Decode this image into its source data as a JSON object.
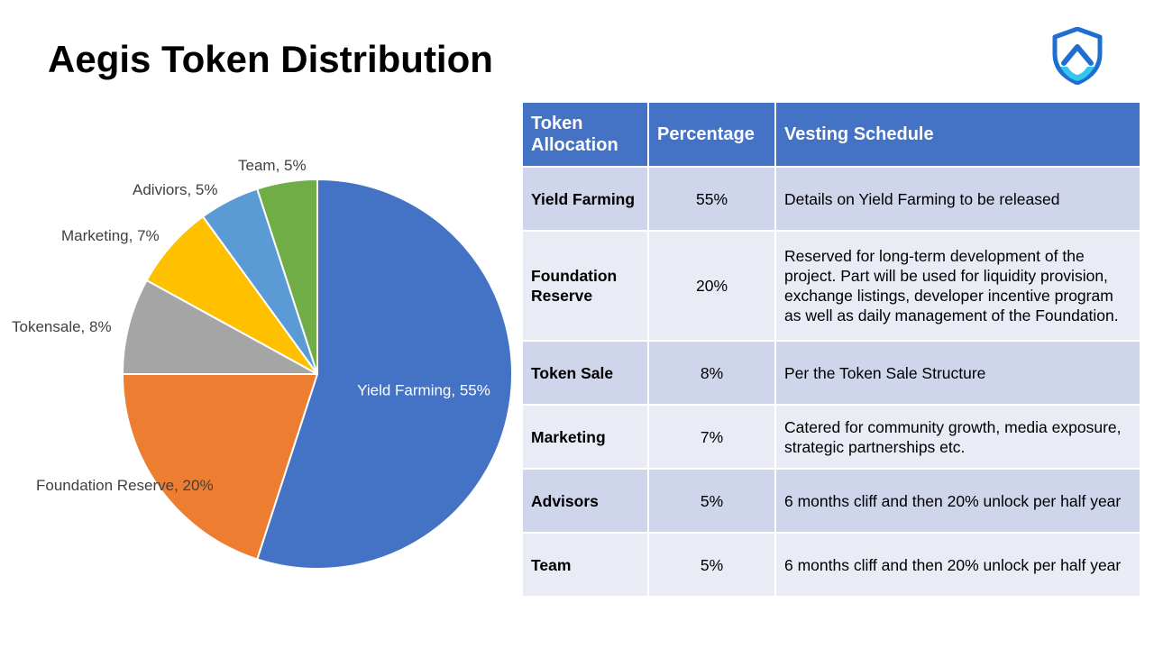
{
  "page": {
    "title": "Aegis Token Distribution"
  },
  "logo": {
    "icon": "shield-logo-icon",
    "colors": [
      "#1f6fd1",
      "#33c6f0"
    ]
  },
  "chart_data": {
    "type": "pie",
    "slices": [
      {
        "label": "Yield Farming",
        "value": 55,
        "data_label": "Yield Farming, 55%",
        "color": "#4472c4"
      },
      {
        "label": "Foundation Reserve",
        "value": 20,
        "data_label": "Foundation Reserve, 20%",
        "color": "#ed7d31"
      },
      {
        "label": "Tokensale",
        "value": 8,
        "data_label": "Tokensale, 8%",
        "color": "#a5a5a5"
      },
      {
        "label": "Marketing",
        "value": 7,
        "data_label": "Marketing, 7%",
        "color": "#ffc000"
      },
      {
        "label": "Adiviors",
        "value": 5,
        "data_label": "Adiviors, 5%",
        "color": "#5b9bd5"
      },
      {
        "label": "Team",
        "value": 5,
        "data_label": "Team, 5%",
        "color": "#70ad47"
      }
    ]
  },
  "table": {
    "headers": [
      "Token Allocation",
      "Percentage",
      "Vesting Schedule"
    ],
    "rows": [
      {
        "allocation": "Yield Farming",
        "percentage": "55%",
        "vesting": "Details on Yield Farming to be released"
      },
      {
        "allocation": "Foundation Reserve",
        "percentage": "20%",
        "vesting": "Reserved for long-term development of the project. Part will be used for liquidity provision, exchange listings, developer incentive program as well as daily management of the Foundation."
      },
      {
        "allocation": "Token Sale",
        "percentage": "8%",
        "vesting": "Per the Token Sale Structure"
      },
      {
        "allocation": "Marketing",
        "percentage": "7%",
        "vesting": "Catered for community growth, media exposure, strategic partnerships etc."
      },
      {
        "allocation": "Advisors",
        "percentage": "5%",
        "vesting": "6 months cliff and then 20% unlock per half year"
      },
      {
        "allocation": "Team",
        "percentage": "5%",
        "vesting": "6 months cliff and then 20% unlock per half year"
      }
    ]
  }
}
